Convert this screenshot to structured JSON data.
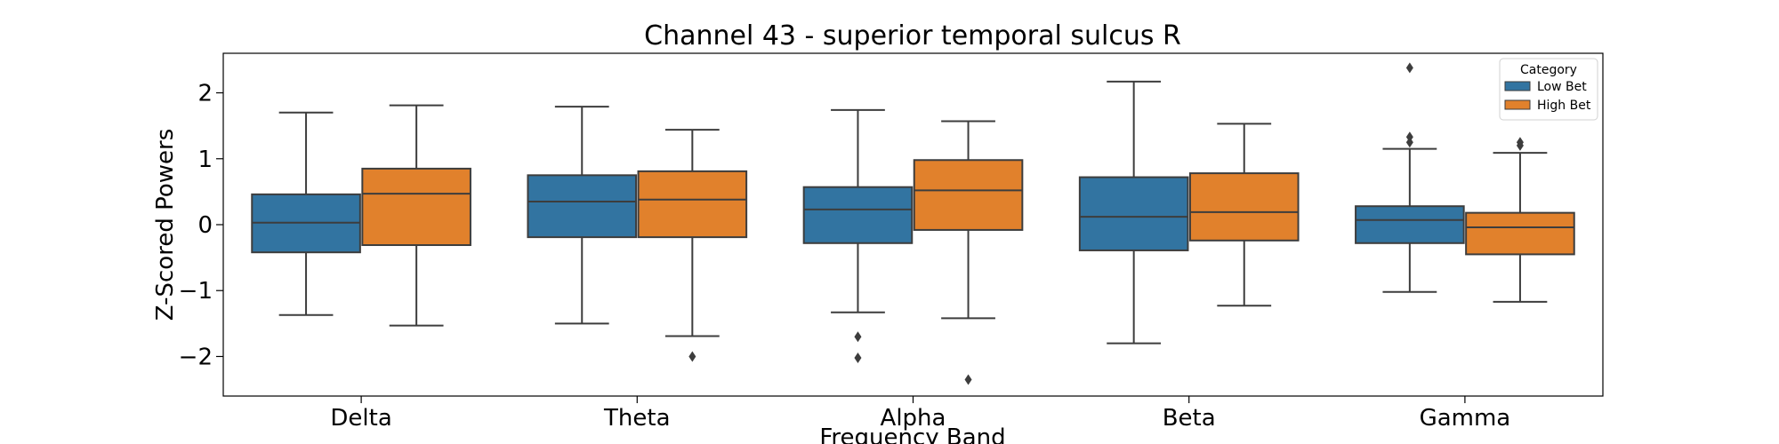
{
  "chart_data": {
    "type": "box",
    "title": "Channel 43 - superior temporal sulcus R",
    "xlabel": "Frequency Band",
    "ylabel": "Z-Scored Powers",
    "categories": [
      "Delta",
      "Theta",
      "Alpha",
      "Beta",
      "Gamma"
    ],
    "ylim": [
      -2.6,
      2.6
    ],
    "yticks": [
      -2,
      -1,
      0,
      1,
      2
    ],
    "ytick_labels": [
      "−2",
      "−1",
      "0",
      "1",
      "2"
    ],
    "grid": false,
    "legend": {
      "title": "Category",
      "placement": "top-right"
    },
    "series": [
      {
        "name": "Low Bet",
        "color": "#3274a1",
        "boxes": [
          {
            "whislo": -1.37,
            "q1": -0.42,
            "med": 0.03,
            "q3": 0.46,
            "whishi": 1.7,
            "fliers": []
          },
          {
            "whislo": -1.5,
            "q1": -0.19,
            "med": 0.35,
            "q3": 0.75,
            "whishi": 1.79,
            "fliers": []
          },
          {
            "whislo": -1.33,
            "q1": -0.28,
            "med": 0.23,
            "q3": 0.57,
            "whishi": 1.74,
            "fliers": [
              -1.7,
              -2.02
            ]
          },
          {
            "whislo": -1.8,
            "q1": -0.39,
            "med": 0.12,
            "q3": 0.72,
            "whishi": 2.17,
            "fliers": []
          },
          {
            "whislo": -1.02,
            "q1": -0.28,
            "med": 0.07,
            "q3": 0.28,
            "whishi": 1.15,
            "fliers": [
              2.38,
              1.33,
              1.25
            ]
          }
        ]
      },
      {
        "name": "High Bet",
        "color": "#e1812c",
        "boxes": [
          {
            "whislo": -1.53,
            "q1": -0.31,
            "med": 0.47,
            "q3": 0.85,
            "whishi": 1.81,
            "fliers": []
          },
          {
            "whislo": -1.69,
            "q1": -0.19,
            "med": 0.38,
            "q3": 0.81,
            "whishi": 1.44,
            "fliers": [
              -2.0
            ]
          },
          {
            "whislo": -1.42,
            "q1": -0.08,
            "med": 0.52,
            "q3": 0.98,
            "whishi": 1.57,
            "fliers": [
              -2.35
            ]
          },
          {
            "whislo": -1.23,
            "q1": -0.24,
            "med": 0.19,
            "q3": 0.78,
            "whishi": 1.53,
            "fliers": []
          },
          {
            "whislo": -1.17,
            "q1": -0.45,
            "med": -0.04,
            "q3": 0.18,
            "whishi": 1.09,
            "fliers": [
              1.2,
              1.25
            ]
          }
        ]
      }
    ]
  }
}
